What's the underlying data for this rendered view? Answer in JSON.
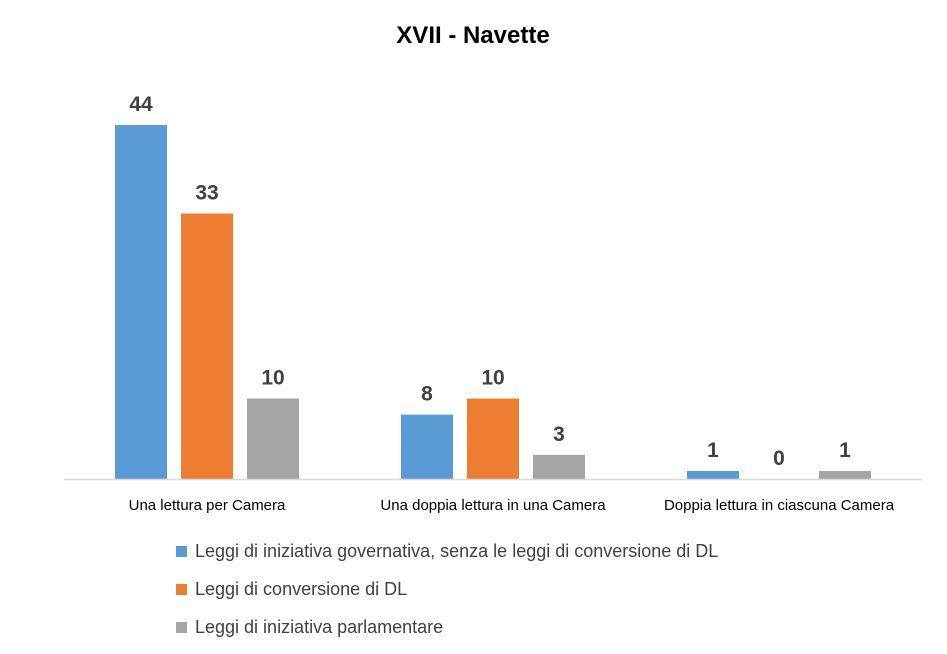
{
  "chart_data": {
    "type": "bar",
    "title": "XVII - Navette",
    "categories": [
      "Una lettura per Camera",
      "Una doppia lettura in una Camera",
      "Doppia lettura in ciascuna Camera"
    ],
    "series": [
      {
        "name": "Leggi di iniziativa governativa, senza le leggi di conversione di DL",
        "values": [
          44,
          8,
          1
        ],
        "color": "#5B9BD5"
      },
      {
        "name": "Leggi di conversione di DL",
        "values": [
          33,
          10,
          0
        ],
        "color": "#ED7D31"
      },
      {
        "name": "Leggi di iniziativa parlamentare",
        "values": [
          10,
          3,
          1
        ],
        "color": "#A5A5A5"
      }
    ],
    "xlabel": "",
    "ylabel": "",
    "ylim": [
      0,
      44
    ],
    "grid": false,
    "legend_position": "bottom"
  }
}
